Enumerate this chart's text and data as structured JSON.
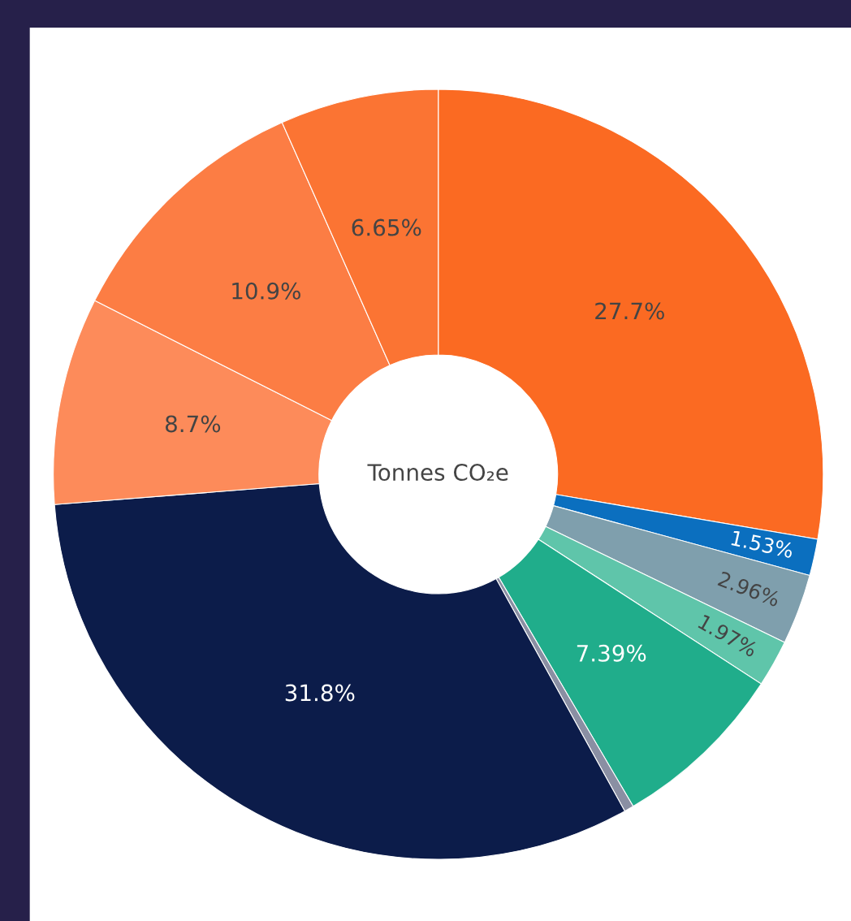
{
  "chart_data": {
    "type": "donut",
    "title": "Tonnes CO₂e",
    "categories": [
      null,
      null,
      null,
      null,
      null,
      null,
      null,
      null,
      null,
      null
    ],
    "values": [
      27.7,
      1.53,
      2.96,
      1.97,
      7.39,
      0.4,
      31.8,
      8.7,
      10.9,
      6.65
    ],
    "value_labels": [
      "27.7%",
      "1.53%",
      "2.96%",
      "1.97%",
      "7.39%",
      null,
      "31.8%",
      "8.7%",
      "10.9%",
      "6.65%"
    ],
    "colors": [
      "#fb6a22",
      "#0b6fbf",
      "#7f9fad",
      "#5fc5aa",
      "#20ad8b",
      "#8a8fa3",
      "#0c1c4a",
      "#fd8b5a",
      "#fc7d44",
      "#fb7433"
    ],
    "legend": false
  }
}
